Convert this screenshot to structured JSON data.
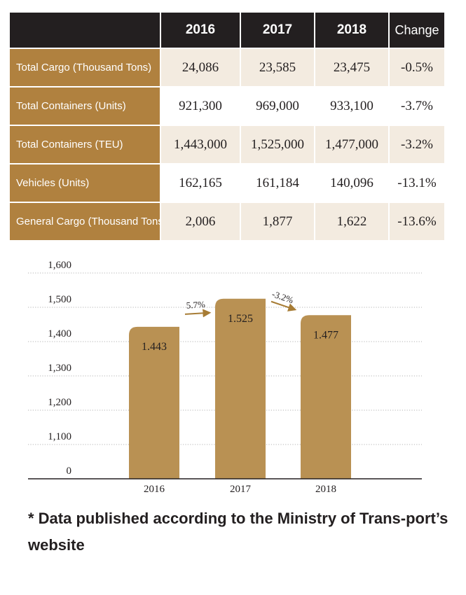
{
  "table": {
    "headers": [
      "",
      "2016",
      "2017",
      "2018",
      "Change"
    ],
    "rows": [
      {
        "label": "Total Cargo (Thousand Tons)",
        "values": [
          "24,086",
          "23,585",
          "23,475",
          "-0.5%"
        ]
      },
      {
        "label": "Total Containers (Units)",
        "values": [
          "921,300",
          "969,000",
          "933,100",
          "-3.7%"
        ]
      },
      {
        "label": "Total Containers (TEU)",
        "values": [
          "1,443,000",
          "1,525,000",
          "1,477,000",
          "-3.2%"
        ]
      },
      {
        "label": "Vehicles (Units)",
        "values": [
          "162,165",
          "161,184",
          "140,096",
          "-13.1%"
        ]
      },
      {
        "label": "General Cargo (Thousand Tons)",
        "values": [
          "2,006",
          "1,877",
          "1,622",
          "-13.6%"
        ]
      }
    ]
  },
  "chart_data": {
    "type": "bar",
    "categories": [
      "2016",
      "2017",
      "2018"
    ],
    "values": [
      1443,
      1525,
      1477
    ],
    "data_labels": [
      "1.443",
      "1.525",
      "1.477"
    ],
    "yticks": [
      "0",
      "1,100",
      "1,200",
      "1,300",
      "1,400",
      "1,500",
      "1,600"
    ],
    "ylim": [
      1000,
      1600
    ],
    "y_axis_break": true,
    "grid": true,
    "annotations": [
      {
        "text": "5.7%",
        "from": "2016",
        "to": "2017"
      },
      {
        "text": "-3.2%",
        "from": "2017",
        "to": "2018"
      }
    ],
    "bar_color": "#b99153",
    "arrow_color": "#a77c35"
  },
  "colors": {
    "header_bg": "#231f20",
    "label_bg": "#b0813f",
    "shade_bg": "#f3ebe0"
  },
  "footnote": "* Data published according to the Ministry of Trans-port’s website"
}
